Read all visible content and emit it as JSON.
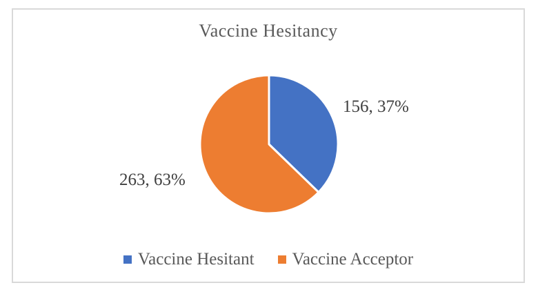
{
  "frame": {
    "border_color": "#D9D9D9",
    "background": "#FFFFFF"
  },
  "chart_data": {
    "type": "pie",
    "title": "Vaccine Hesitancy",
    "categories": [
      "Vaccine Hesitant",
      "Vaccine Acceptor"
    ],
    "values": [
      156,
      263
    ],
    "percent_labels": [
      "37%",
      "63%"
    ],
    "data_labels": [
      "156, 37%",
      "263, 63%"
    ],
    "colors": [
      "#4472C4",
      "#ED7D31"
    ],
    "slice_border_color": "#FFFFFF",
    "start_angle_deg": 0,
    "direction": "clockwise",
    "legend_position": "bottom",
    "title_color": "#595959",
    "label_color": "#404040",
    "legend_text_color": "#595959"
  },
  "labels": {
    "hesitant": "156, 37%",
    "acceptor": "263, 63%"
  },
  "legend": {
    "items": [
      {
        "label": "Vaccine Hesitant",
        "color": "#4472C4"
      },
      {
        "label": "Vaccine Acceptor",
        "color": "#ED7D31"
      }
    ]
  }
}
